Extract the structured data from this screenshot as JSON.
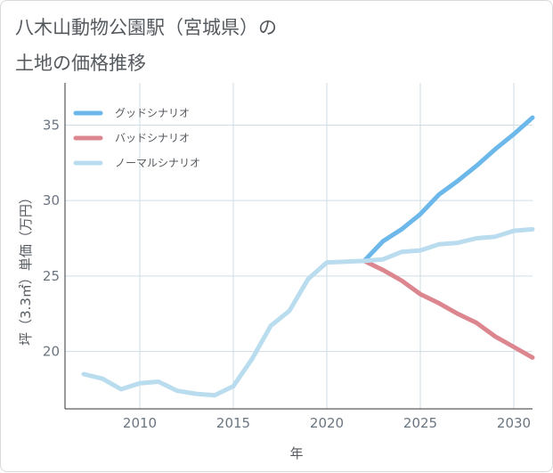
{
  "header": {
    "title_line1": "八木山動物公園駅（宮城県）の",
    "title_line2": "土地の価格推移"
  },
  "colors": {
    "good": "#6cb8ea",
    "bad": "#dc8790",
    "normal": "#b9dcee",
    "grid": "#cfdde6",
    "axis": "#333333"
  },
  "chart_data": {
    "type": "line",
    "xlabel": "年",
    "ylabel": "坪（3.3㎡）単価（万円）",
    "xlim": [
      2006,
      2031
    ],
    "ylim": [
      16.2,
      37.8
    ],
    "x_ticks": [
      2010,
      2015,
      2020,
      2025,
      2030
    ],
    "y_ticks": [
      20,
      25,
      30,
      35
    ],
    "grid": true,
    "legend_position": "top-left",
    "series": [
      {
        "name": "グッドシナリオ",
        "color": "#6cb8ea",
        "x": [
          2022,
          2023,
          2024,
          2025,
          2026,
          2027,
          2028,
          2029,
          2030,
          2031
        ],
        "y": [
          26.0,
          27.3,
          28.1,
          29.1,
          30.4,
          31.3,
          32.3,
          33.4,
          34.4,
          35.5
        ]
      },
      {
        "name": "バッドシナリオ",
        "color": "#dc8790",
        "x": [
          2022,
          2023,
          2024,
          2025,
          2026,
          2027,
          2028,
          2029,
          2030,
          2031
        ],
        "y": [
          26.0,
          25.4,
          24.7,
          23.8,
          23.2,
          22.5,
          21.9,
          21.0,
          20.3,
          19.6
        ]
      },
      {
        "name": "ノーマルシナリオ",
        "color": "#b9dcee",
        "x": [
          2007,
          2008,
          2009,
          2010,
          2011,
          2012,
          2013,
          2014,
          2015,
          2016,
          2017,
          2018,
          2019,
          2020,
          2021,
          2022,
          2023,
          2024,
          2025,
          2026,
          2027,
          2028,
          2029,
          2030,
          2031
        ],
        "y": [
          18.5,
          18.2,
          17.5,
          17.9,
          18.0,
          17.4,
          17.2,
          17.1,
          17.7,
          19.5,
          21.7,
          22.7,
          24.8,
          25.9,
          25.95,
          26.0,
          26.1,
          26.6,
          26.7,
          27.1,
          27.2,
          27.5,
          27.6,
          28.0,
          28.1
        ]
      }
    ]
  }
}
